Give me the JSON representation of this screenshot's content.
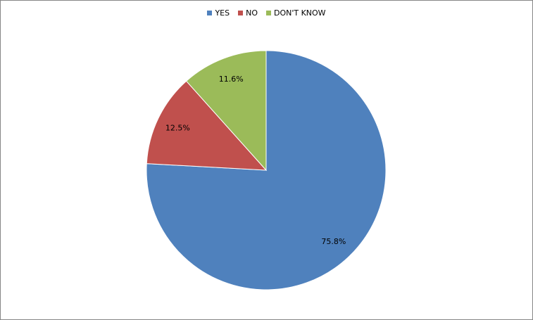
{
  "chart_data": {
    "type": "pie",
    "title": "",
    "legend_position": "top",
    "start_angle": "top, clockwise",
    "slices": [
      {
        "name": "YES",
        "value": 75.8,
        "label": "75.8%",
        "color": "#4F81BD"
      },
      {
        "name": "NO",
        "value": 12.5,
        "label": "12.5%",
        "color": "#C0504D"
      },
      {
        "name": "DON'T KNOW",
        "value": 11.6,
        "label": "11.6%",
        "color": "#9BBB59"
      }
    ]
  }
}
